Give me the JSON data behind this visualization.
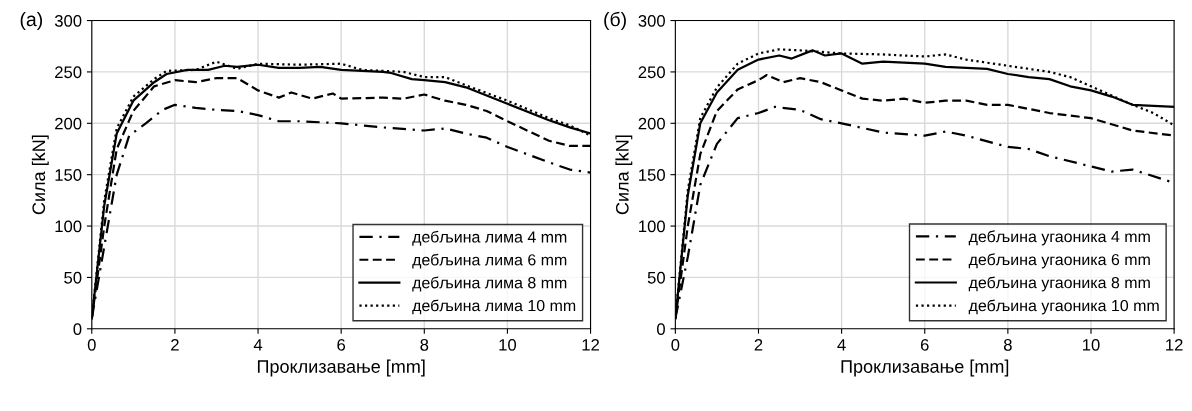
{
  "chart_data": [
    {
      "type": "line",
      "title": "(a)",
      "xlabel": "Проклизавање [mm]",
      "ylabel": "Сила [kN]",
      "xlim": [
        0,
        12
      ],
      "ylim": [
        0,
        300
      ],
      "xticks": [
        0,
        2,
        4,
        6,
        8,
        10,
        12
      ],
      "yticks": [
        0,
        50,
        100,
        150,
        200,
        250,
        300
      ],
      "grid": true,
      "legend": "bottom right",
      "series": [
        {
          "name": "дебљина лима 4 mm",
          "color": "#000000",
          "line_style": "dashdot",
          "x": [
            0,
            0.3,
            0.6,
            0.9,
            1.3,
            1.7,
            2.0,
            2.5,
            3,
            3.5,
            4,
            4.5,
            5,
            6,
            7,
            8,
            8.5,
            9,
            9.5,
            10,
            11,
            11.5,
            12
          ],
          "values": [
            10,
            80,
            150,
            188,
            200,
            213,
            218,
            215,
            213,
            212,
            208,
            202,
            202,
            200,
            196,
            193,
            195,
            190,
            186,
            177,
            162,
            155,
            152
          ]
        },
        {
          "name": "дебљина лима 6 mm",
          "color": "#000000",
          "line_style": "dashed",
          "x": [
            0,
            0.3,
            0.6,
            1,
            1.5,
            2,
            2.5,
            3,
            3.5,
            4,
            4.5,
            4.8,
            5.3,
            5.8,
            6,
            7,
            7.5,
            8,
            8.5,
            9,
            9.5,
            10,
            11,
            11.5,
            12
          ],
          "values": [
            10,
            100,
            175,
            212,
            236,
            242,
            240,
            244,
            244,
            232,
            225,
            230,
            224,
            229,
            224,
            225,
            224,
            228,
            222,
            218,
            212,
            202,
            183,
            178,
            178
          ]
        },
        {
          "name": "дебљина лима 8 mm",
          "color": "#000000",
          "line_style": "solid",
          "x": [
            0,
            0.3,
            0.6,
            1,
            1.5,
            1.8,
            2.3,
            2.8,
            3.2,
            3.5,
            4,
            4.5,
            5,
            5.5,
            6,
            7,
            7.2,
            7.7,
            8,
            8.5,
            9,
            9.5,
            10,
            11,
            11.5,
            12
          ],
          "values": [
            10,
            120,
            190,
            222,
            240,
            248,
            252,
            252,
            256,
            255,
            257,
            254,
            254,
            255,
            252,
            250,
            249,
            243,
            242,
            240,
            235,
            227,
            219,
            203,
            196,
            190
          ]
        },
        {
          "name": "дебљина лима 10 mm",
          "color": "#000000",
          "line_style": "dotted",
          "x": [
            0,
            0.3,
            0.6,
            1,
            1.5,
            1.8,
            2.5,
            3,
            3.5,
            4,
            5,
            6,
            6.5,
            7.5,
            8,
            8.5,
            9,
            10,
            11,
            11.5,
            12
          ],
          "values": [
            10,
            125,
            195,
            226,
            243,
            251,
            252,
            260,
            253,
            258,
            257,
            258,
            252,
            250,
            245,
            245,
            237,
            222,
            205,
            198,
            188
          ]
        }
      ]
    },
    {
      "type": "line",
      "title": "(б)",
      "xlabel": "Проклизавање [mm]",
      "ylabel": "Сила [kN]",
      "xlim": [
        0,
        12
      ],
      "ylim": [
        0,
        300
      ],
      "xticks": [
        0,
        2,
        4,
        6,
        8,
        10,
        12
      ],
      "yticks": [
        0,
        50,
        100,
        150,
        200,
        250,
        300
      ],
      "grid": true,
      "legend": "bottom right",
      "series": [
        {
          "name": "дебљина угаоника 4 mm",
          "color": "#000000",
          "line_style": "dashdot",
          "x": [
            0,
            0.3,
            0.6,
            1,
            1.5,
            2,
            2.4,
            3,
            3.5,
            4,
            5,
            6,
            6.5,
            7,
            8,
            8.5,
            9,
            10,
            10.5,
            11,
            12
          ],
          "values": [
            10,
            70,
            140,
            180,
            205,
            210,
            216,
            213,
            204,
            200,
            191,
            188,
            192,
            188,
            177,
            175,
            168,
            158,
            153,
            155,
            142
          ]
        },
        {
          "name": "дебљина угаоника 6 mm",
          "color": "#000000",
          "line_style": "dashed",
          "x": [
            0,
            0.3,
            0.6,
            1,
            1.5,
            2,
            2.2,
            2.6,
            3,
            3.5,
            4,
            4.5,
            5,
            5.5,
            6,
            6.5,
            7,
            7.5,
            8,
            8.5,
            9,
            10,
            11,
            12
          ],
          "values": [
            10,
            100,
            170,
            212,
            233,
            242,
            247,
            240,
            244,
            240,
            232,
            224,
            222,
            224,
            220,
            222,
            222,
            218,
            218,
            214,
            210,
            205,
            193,
            188
          ]
        },
        {
          "name": "дебљина угаоника 8 mm",
          "color": "#000000",
          "line_style": "solid",
          "x": [
            0,
            0.3,
            0.6,
            1,
            1.5,
            2,
            2.5,
            2.8,
            3.3,
            3.6,
            4,
            4.5,
            5,
            6,
            6.5,
            7,
            7.5,
            8,
            8.5,
            9,
            9.5,
            10,
            10.5,
            11,
            11.5,
            12
          ],
          "values": [
            10,
            130,
            200,
            230,
            252,
            262,
            266,
            263,
            271,
            266,
            268,
            258,
            260,
            258,
            255,
            254,
            253,
            248,
            245,
            243,
            236,
            232,
            226,
            218,
            217,
            216
          ]
        },
        {
          "name": "дебљина угаоника 10 mm",
          "color": "#000000",
          "line_style": "dotted",
          "x": [
            0,
            0.3,
            0.6,
            1,
            1.5,
            2,
            2.5,
            3,
            4,
            5,
            6,
            6.5,
            7,
            8,
            9,
            9.5,
            10,
            11,
            11.5,
            12
          ],
          "values": [
            10,
            135,
            205,
            235,
            258,
            268,
            272,
            271,
            268,
            267,
            265,
            267,
            262,
            256,
            250,
            245,
            236,
            218,
            210,
            198
          ]
        }
      ]
    }
  ]
}
